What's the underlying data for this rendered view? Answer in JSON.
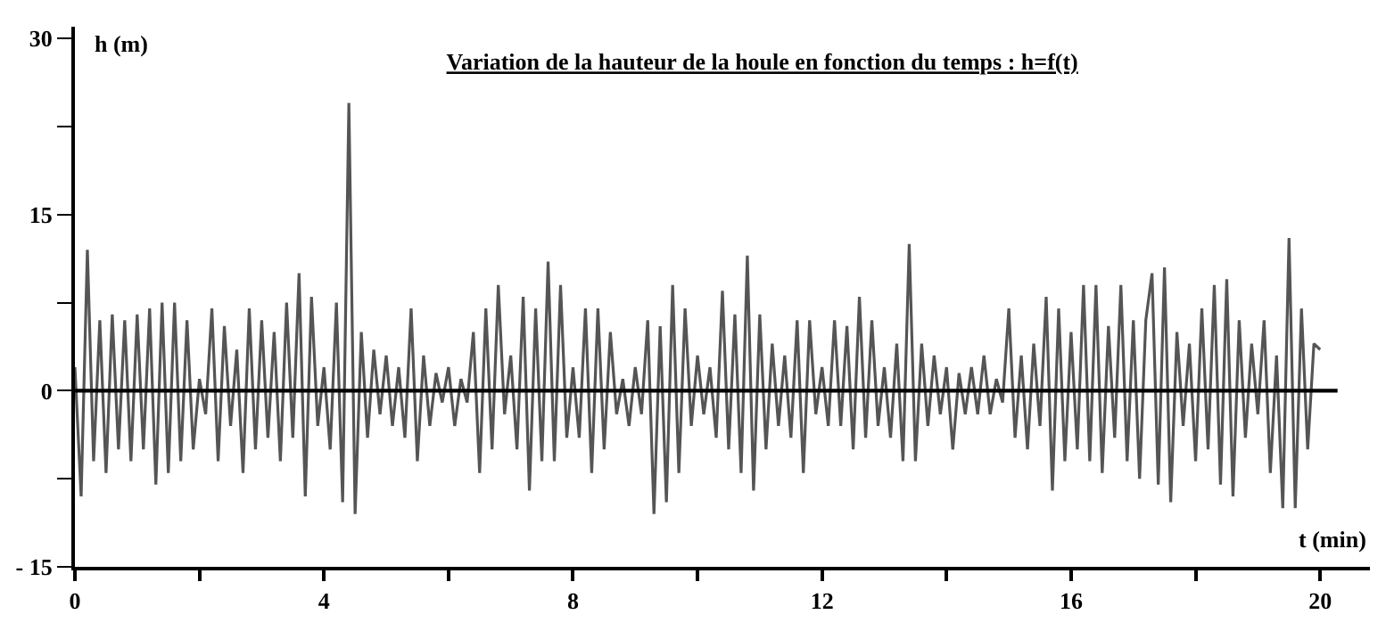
{
  "chart_data": {
    "type": "line",
    "title": "Variation de la hauteur de la houle en fonction du temps : h=f(t)",
    "xlabel": "t (min)",
    "ylabel": "h (m)",
    "xlim": [
      0,
      20.8
    ],
    "ylim": [
      -15,
      31
    ],
    "xticks": [
      0,
      {
        "value": 2,
        "label": null
      },
      4,
      {
        "value": 6,
        "label": null
      },
      8,
      {
        "value": 10,
        "label": null
      },
      12,
      {
        "value": 14,
        "label": null
      },
      16,
      {
        "value": 18,
        "label": null
      },
      20
    ],
    "yticks": [
      {
        "value": -15,
        "label": "- 15"
      },
      {
        "value": -7.5,
        "label": null
      },
      0,
      {
        "value": 7.5,
        "label": null
      },
      15,
      {
        "value": 22.5,
        "label": null
      },
      30
    ],
    "marker": "none",
    "line_style": "solid",
    "ref_lines": [
      {
        "axis": "y",
        "value": 0,
        "label": null,
        "color": "#000000"
      }
    ],
    "series": [
      {
        "color": "#555555",
        "x": [
          0.0,
          0.1,
          0.2,
          0.3,
          0.4,
          0.5,
          0.6,
          0.7,
          0.8,
          0.9,
          1.0,
          1.1,
          1.2,
          1.3,
          1.4,
          1.5,
          1.6,
          1.7,
          1.8,
          1.9,
          2.0,
          2.1,
          2.2,
          2.3,
          2.4,
          2.5,
          2.6,
          2.7,
          2.8,
          2.9,
          3.0,
          3.1,
          3.2,
          3.3,
          3.4,
          3.5,
          3.6,
          3.7,
          3.8,
          3.9,
          4.0,
          4.1,
          4.2,
          4.3,
          4.4,
          4.5,
          4.6,
          4.7,
          4.8,
          4.9,
          5.0,
          5.1,
          5.2,
          5.3,
          5.4,
          5.5,
          5.6,
          5.7,
          5.8,
          5.9,
          6.0,
          6.1,
          6.2,
          6.3,
          6.4,
          6.5,
          6.6,
          6.7,
          6.8,
          6.9,
          7.0,
          7.1,
          7.2,
          7.3,
          7.4,
          7.5,
          7.6,
          7.7,
          7.8,
          7.9,
          8.0,
          8.1,
          8.2,
          8.3,
          8.4,
          8.5,
          8.6,
          8.7,
          8.8,
          8.9,
          9.0,
          9.1,
          9.2,
          9.3,
          9.4,
          9.5,
          9.6,
          9.7,
          9.8,
          9.9,
          10.0,
          10.1,
          10.2,
          10.3,
          10.4,
          10.5,
          10.6,
          10.7,
          10.8,
          10.9,
          11.0,
          11.1,
          11.2,
          11.3,
          11.4,
          11.5,
          11.6,
          11.7,
          11.8,
          11.9,
          12.0,
          12.1,
          12.2,
          12.3,
          12.4,
          12.5,
          12.6,
          12.7,
          12.8,
          12.9,
          13.0,
          13.1,
          13.2,
          13.3,
          13.4,
          13.5,
          13.6,
          13.7,
          13.8,
          13.9,
          14.0,
          14.1,
          14.2,
          14.3,
          14.4,
          14.5,
          14.6,
          14.7,
          14.8,
          14.9,
          15.0,
          15.1,
          15.2,
          15.3,
          15.4,
          15.5,
          15.6,
          15.7,
          15.8,
          15.9,
          16.0,
          16.1,
          16.2,
          16.3,
          16.4,
          16.5,
          16.6,
          16.7,
          16.8,
          16.9,
          17.0,
          17.1,
          17.2,
          17.3,
          17.4,
          17.5,
          17.6,
          17.7,
          17.8,
          17.9,
          18.0,
          18.1,
          18.2,
          18.3,
          18.4,
          18.5,
          18.6,
          18.7,
          18.8,
          18.9,
          19.0,
          19.1,
          19.2,
          19.3,
          19.4,
          19.5,
          19.6,
          19.7,
          19.8,
          19.9,
          20.0
        ],
        "values": [
          2,
          -9,
          12,
          -6,
          6,
          -7,
          6.5,
          -5,
          6,
          -6,
          6.5,
          -5,
          7,
          -8,
          7.5,
          -7,
          7.5,
          -6,
          6,
          -5,
          1,
          -2,
          7,
          -6,
          5.5,
          -3,
          3.5,
          -7,
          7,
          -5,
          6,
          -4,
          5,
          -6,
          7.5,
          -4,
          10,
          -9,
          8,
          -3,
          2,
          -5,
          7.5,
          -9.5,
          24.5,
          -10.5,
          5,
          -4,
          3.5,
          -2,
          3,
          -3,
          2,
          -4,
          7,
          -6,
          3,
          -3,
          1.5,
          -1,
          2,
          -3,
          1,
          -1,
          5,
          -7,
          7,
          -5,
          9,
          -2,
          3,
          -5,
          8,
          -8.5,
          7,
          -6,
          11,
          -6,
          9,
          -4,
          2,
          -4,
          7,
          -7,
          7,
          -5,
          5,
          -2,
          1,
          -3,
          2,
          -2,
          6,
          -10.5,
          5.5,
          -9.5,
          9,
          -7,
          7,
          -3,
          3,
          -2,
          2,
          -4,
          8.5,
          -5,
          6.5,
          -7,
          11.5,
          -8.5,
          6.5,
          -5,
          4,
          -3,
          3,
          -4,
          6,
          -7,
          6,
          -2,
          2,
          -3,
          6,
          -3,
          5.5,
          -5,
          8,
          -4,
          6,
          -3,
          2,
          -4,
          4,
          -6,
          12.5,
          -6,
          4,
          -3,
          3,
          -2,
          2,
          -5,
          1.5,
          -2,
          2,
          -2,
          3,
          -2,
          1,
          -1,
          7,
          -4,
          3,
          -5,
          4,
          -3,
          8,
          -8.5,
          7,
          -6,
          5,
          -5,
          9,
          -6,
          9,
          -7,
          5.5,
          -4,
          9,
          -6,
          6,
          -7.5,
          6,
          10,
          -8,
          10.5,
          -9.5,
          5,
          -3,
          4,
          -6,
          7,
          -5,
          9,
          -8,
          9.5,
          -9,
          6,
          -4,
          4,
          -2,
          6,
          -7,
          3,
          -10,
          13,
          -10,
          7,
          -5,
          4,
          3.5
        ]
      }
    ]
  }
}
